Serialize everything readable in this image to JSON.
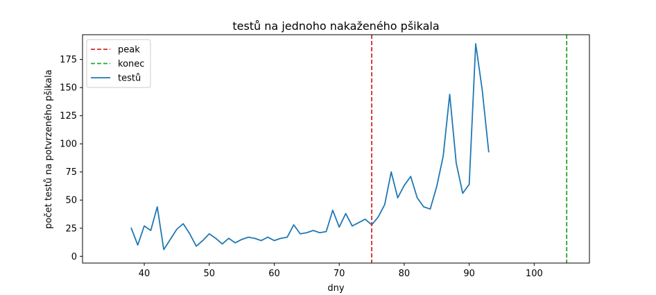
{
  "chart_data": {
    "type": "line",
    "title": "testů na jednoho nakaženého pšikala",
    "xlabel": "dny",
    "ylabel": "počet testů na potvrzeného pšikala",
    "xlim": [
      30.5,
      108.5
    ],
    "ylim": [
      -6,
      197
    ],
    "xticks": [
      40,
      50,
      60,
      70,
      80,
      90,
      100
    ],
    "yticks": [
      0,
      25,
      50,
      75,
      100,
      125,
      150,
      175
    ],
    "grid": false,
    "legend_position": "top-left",
    "vlines": [
      {
        "name": "peak",
        "x": 75,
        "color": "#d62728",
        "style": "dashed"
      },
      {
        "name": "konec",
        "x": 105,
        "color": "#2ca02c",
        "style": "dashed"
      }
    ],
    "series": [
      {
        "name": "testů",
        "color": "#1f77b4",
        "x": [
          38,
          39,
          40,
          41,
          42,
          43,
          44,
          45,
          46,
          47,
          48,
          49,
          50,
          51,
          52,
          53,
          54,
          55,
          56,
          57,
          58,
          59,
          60,
          61,
          62,
          63,
          64,
          65,
          66,
          67,
          68,
          69,
          70,
          71,
          72,
          73,
          74,
          75,
          76,
          77,
          78,
          79,
          80,
          81,
          82,
          83,
          84,
          85,
          86,
          87,
          88,
          89,
          90,
          91,
          92,
          93
        ],
        "y": [
          25,
          10,
          27,
          23,
          44,
          6,
          15,
          24,
          29,
          20,
          9,
          14,
          20,
          16,
          11,
          16,
          12,
          15,
          17,
          16,
          14,
          17,
          14,
          16,
          17,
          28,
          20,
          21,
          23,
          21,
          22,
          41,
          26,
          38,
          27,
          30,
          33,
          28,
          35,
          46,
          75,
          52,
          63,
          71,
          52,
          44,
          42,
          62,
          89,
          144,
          83,
          56,
          64,
          189,
          148,
          93
        ]
      }
    ]
  }
}
